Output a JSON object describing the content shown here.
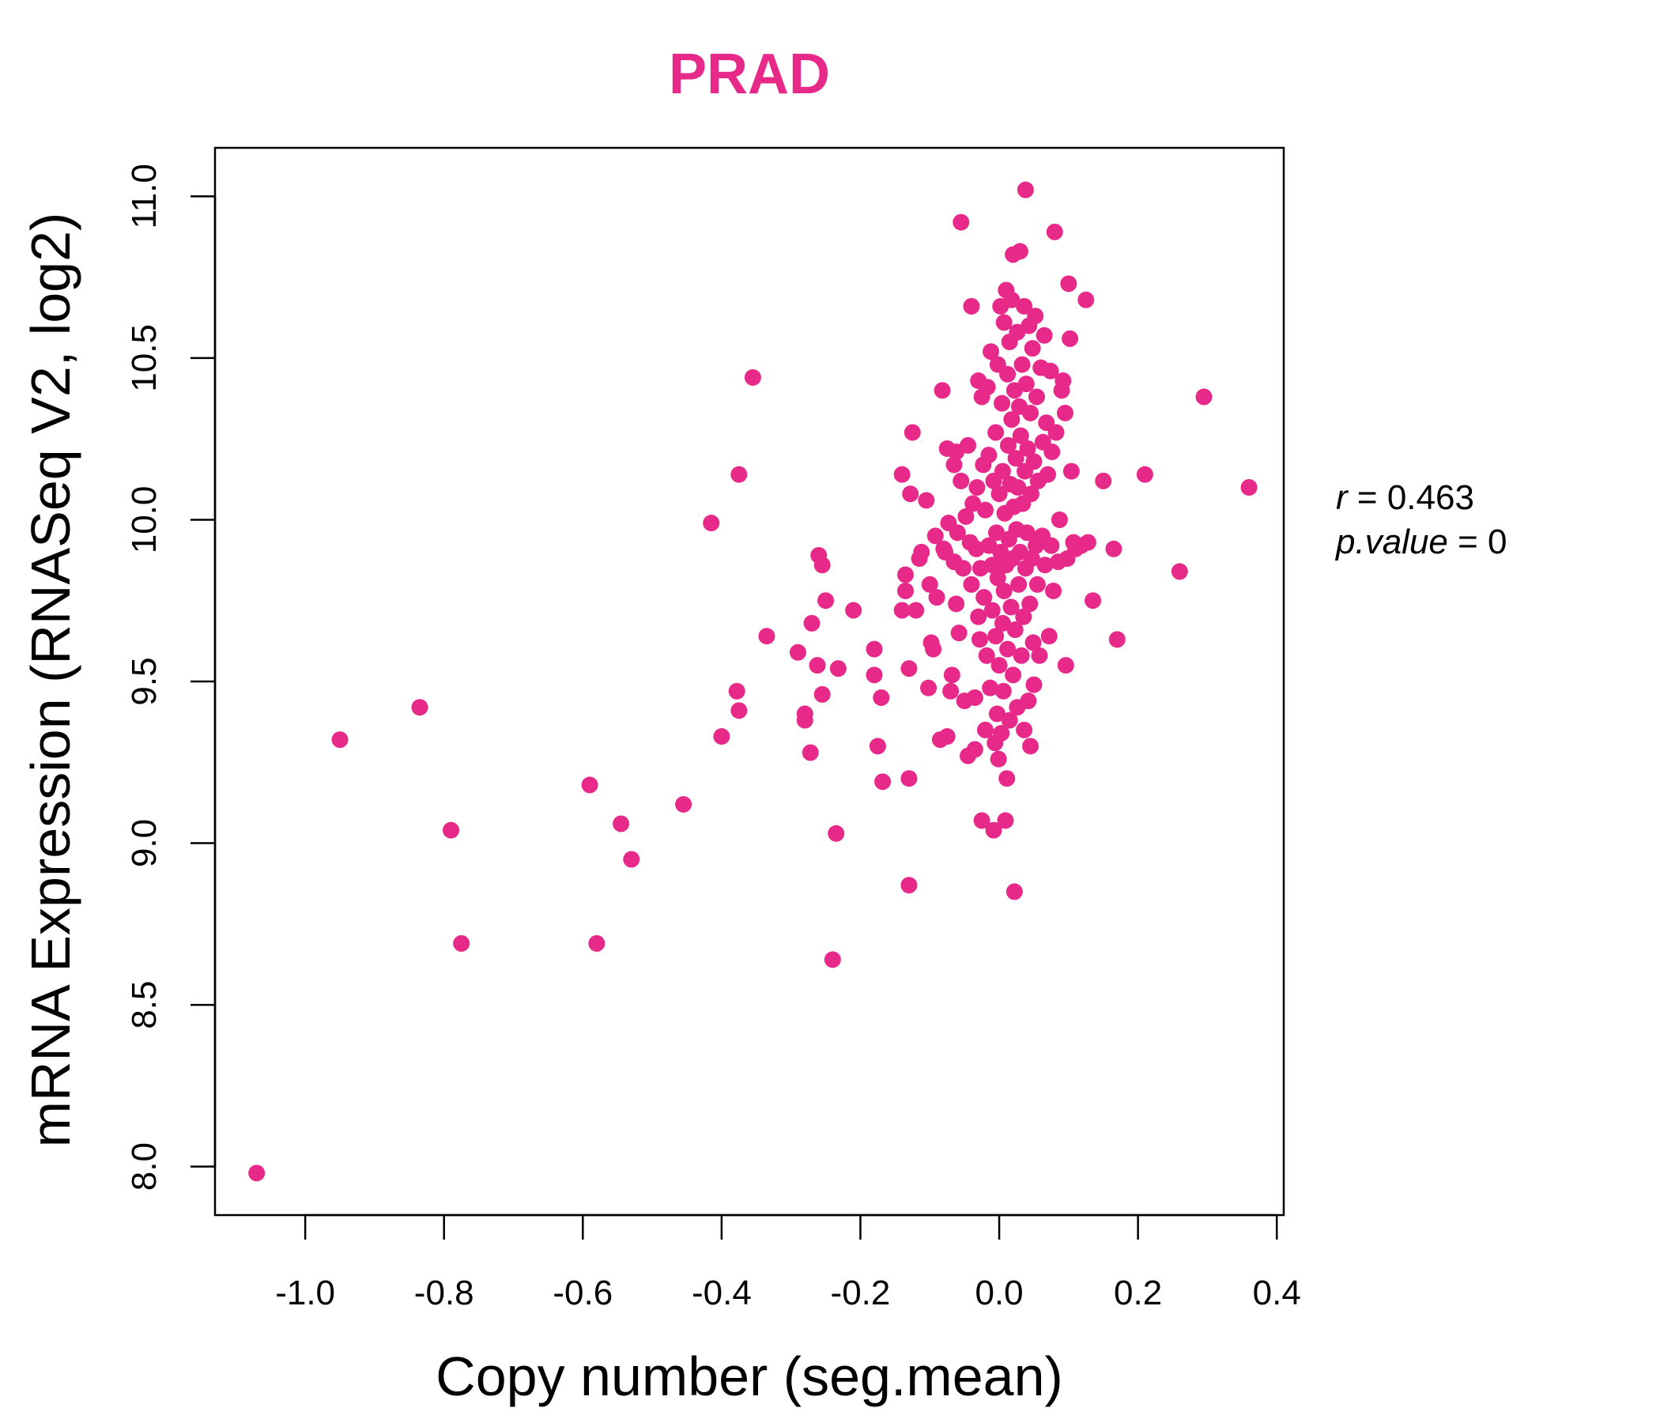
{
  "chart_data": {
    "type": "scatter",
    "title": "PRAD",
    "xlabel": "Copy number (seg.mean)",
    "ylabel": "mRNA Expression (RNASeq V2, log2)",
    "xlim": [
      -1.13,
      0.41
    ],
    "ylim": [
      7.85,
      11.15
    ],
    "xticks": [
      -1.0,
      -0.8,
      -0.6,
      -0.4,
      -0.2,
      0.0,
      0.2,
      0.4
    ],
    "xtick_labels": [
      "-1.0",
      "-0.8",
      "-0.6",
      "-0.4",
      "-0.2",
      "0.0",
      "0.2",
      "0.4"
    ],
    "yticks": [
      8.0,
      8.5,
      9.0,
      9.5,
      10.0,
      10.5,
      11.0
    ],
    "ytick_labels": [
      "8.0",
      "8.5",
      "9.0",
      "9.5",
      "10.0",
      "10.5",
      "11.0"
    ],
    "grid": false,
    "point_color": "#E7298A",
    "stats": {
      "r_label": "r",
      "r_value": "0.463",
      "p_label": "p.value",
      "p_value": "0"
    },
    "series": [
      {
        "name": "samples",
        "points": [
          [
            -1.07,
            7.98
          ],
          [
            -0.95,
            9.32
          ],
          [
            -0.835,
            9.42
          ],
          [
            -0.79,
            9.04
          ],
          [
            -0.775,
            8.69
          ],
          [
            -0.59,
            9.18
          ],
          [
            -0.58,
            8.69
          ],
          [
            -0.545,
            9.06
          ],
          [
            -0.53,
            8.95
          ],
          [
            -0.455,
            9.12
          ],
          [
            -0.415,
            9.99
          ],
          [
            -0.4,
            9.33
          ],
          [
            -0.375,
            10.14
          ],
          [
            -0.378,
            9.47
          ],
          [
            -0.375,
            9.41
          ],
          [
            -0.355,
            10.44
          ],
          [
            -0.335,
            9.64
          ],
          [
            -0.29,
            9.59
          ],
          [
            -0.28,
            9.4
          ],
          [
            -0.28,
            9.38
          ],
          [
            -0.272,
            9.28
          ],
          [
            -0.27,
            9.68
          ],
          [
            -0.26,
            9.89
          ],
          [
            -0.262,
            9.55
          ],
          [
            -0.255,
            9.86
          ],
          [
            -0.255,
            9.46
          ],
          [
            -0.25,
            9.75
          ],
          [
            -0.24,
            8.64
          ],
          [
            -0.235,
            9.03
          ],
          [
            -0.232,
            9.54
          ],
          [
            -0.21,
            9.72
          ],
          [
            -0.18,
            9.6
          ],
          [
            -0.18,
            9.52
          ],
          [
            -0.175,
            9.3
          ],
          [
            -0.17,
            9.45
          ],
          [
            -0.168,
            9.19
          ],
          [
            -0.14,
            9.72
          ],
          [
            -0.135,
            9.78
          ],
          [
            -0.135,
            9.83
          ],
          [
            -0.14,
            10.14
          ],
          [
            -0.13,
            9.2
          ],
          [
            -0.13,
            8.87
          ],
          [
            -0.13,
            9.54
          ],
          [
            -0.125,
            10.27
          ],
          [
            -0.128,
            10.08
          ],
          [
            -0.12,
            9.72
          ],
          [
            -0.115,
            9.88
          ],
          [
            -0.112,
            9.9
          ],
          [
            -0.105,
            10.06
          ],
          [
            -0.102,
            9.48
          ],
          [
            -0.1,
            9.8
          ],
          [
            -0.098,
            9.62
          ],
          [
            -0.095,
            9.6
          ],
          [
            -0.092,
            9.95
          ],
          [
            -0.09,
            9.76
          ],
          [
            -0.085,
            9.32
          ],
          [
            -0.082,
            10.4
          ],
          [
            -0.08,
            9.91
          ],
          [
            -0.078,
            9.9
          ],
          [
            -0.075,
            10.22
          ],
          [
            -0.075,
            9.33
          ],
          [
            -0.073,
            9.99
          ],
          [
            -0.07,
            9.47
          ],
          [
            -0.068,
            9.52
          ],
          [
            -0.065,
            10.17
          ],
          [
            -0.065,
            9.87
          ],
          [
            -0.062,
            9.74
          ],
          [
            -0.062,
            10.21
          ],
          [
            -0.06,
            9.96
          ],
          [
            -0.058,
            9.65
          ],
          [
            -0.055,
            10.92
          ],
          [
            -0.055,
            10.12
          ],
          [
            -0.052,
            9.85
          ],
          [
            -0.05,
            9.44
          ],
          [
            -0.048,
            10.01
          ],
          [
            -0.045,
            9.27
          ],
          [
            -0.045,
            10.23
          ],
          [
            -0.042,
            9.93
          ],
          [
            -0.04,
            10.66
          ],
          [
            -0.04,
            9.8
          ],
          [
            -0.038,
            10.05
          ],
          [
            -0.035,
            9.29
          ],
          [
            -0.035,
            9.45
          ],
          [
            -0.033,
            9.91
          ],
          [
            -0.032,
            10.1
          ],
          [
            -0.03,
            10.43
          ],
          [
            -0.03,
            9.7
          ],
          [
            -0.028,
            9.63
          ],
          [
            -0.027,
            9.85
          ],
          [
            -0.025,
            10.38
          ],
          [
            -0.025,
            9.07
          ],
          [
            -0.023,
            10.17
          ],
          [
            -0.022,
            9.76
          ],
          [
            -0.02,
            9.35
          ],
          [
            -0.02,
            10.03
          ],
          [
            -0.018,
            9.58
          ],
          [
            -0.017,
            10.41
          ],
          [
            -0.015,
            9.92
          ],
          [
            -0.015,
            10.2
          ],
          [
            -0.013,
            9.48
          ],
          [
            -0.012,
            10.52
          ],
          [
            -0.01,
            9.86
          ],
          [
            -0.01,
            9.72
          ],
          [
            -0.008,
            9.04
          ],
          [
            -0.008,
            10.12
          ],
          [
            -0.006,
            9.31
          ],
          [
            -0.005,
            10.27
          ],
          [
            -0.005,
            9.64
          ],
          [
            -0.004,
            9.96
          ],
          [
            -0.003,
            9.4
          ],
          [
            -0.002,
            10.48
          ],
          [
            -0.002,
            9.82
          ],
          [
            -0.001,
            9.26
          ],
          [
            0.0,
            10.08
          ],
          [
            0.0,
            9.55
          ],
          [
            0.002,
            10.66
          ],
          [
            0.002,
            9.9
          ],
          [
            0.003,
            9.34
          ],
          [
            0.004,
            10.36
          ],
          [
            0.005,
            9.68
          ],
          [
            0.005,
            10.15
          ],
          [
            0.006,
            9.47
          ],
          [
            0.007,
            10.61
          ],
          [
            0.007,
            9.78
          ],
          [
            0.008,
            10.02
          ],
          [
            0.009,
            9.07
          ],
          [
            0.01,
            10.71
          ],
          [
            0.01,
            9.86
          ],
          [
            0.011,
            9.2
          ],
          [
            0.012,
            10.45
          ],
          [
            0.012,
            9.6
          ],
          [
            0.013,
            10.23
          ],
          [
            0.014,
            9.94
          ],
          [
            0.015,
            10.55
          ],
          [
            0.015,
            9.38
          ],
          [
            0.016,
            10.11
          ],
          [
            0.017,
            9.73
          ],
          [
            0.018,
            10.68
          ],
          [
            0.018,
            10.31
          ],
          [
            0.019,
            9.88
          ],
          [
            0.02,
            10.82
          ],
          [
            0.02,
            9.52
          ],
          [
            0.021,
            10.04
          ],
          [
            0.022,
            8.85
          ],
          [
            0.022,
            10.4
          ],
          [
            0.023,
            9.66
          ],
          [
            0.024,
            10.19
          ],
          [
            0.025,
            9.97
          ],
          [
            0.026,
            10.58
          ],
          [
            0.026,
            9.42
          ],
          [
            0.027,
            10.1
          ],
          [
            0.028,
            9.8
          ],
          [
            0.029,
            10.35
          ],
          [
            0.03,
            10.83
          ],
          [
            0.03,
            9.9
          ],
          [
            0.031,
            10.26
          ],
          [
            0.032,
            9.58
          ],
          [
            0.033,
            10.48
          ],
          [
            0.034,
            10.05
          ],
          [
            0.035,
            9.7
          ],
          [
            0.036,
            10.66
          ],
          [
            0.036,
            9.35
          ],
          [
            0.037,
            10.15
          ],
          [
            0.038,
            11.02
          ],
          [
            0.038,
            9.85
          ],
          [
            0.039,
            10.42
          ],
          [
            0.04,
            9.96
          ],
          [
            0.041,
            10.22
          ],
          [
            0.042,
            9.44
          ],
          [
            0.043,
            10.6
          ],
          [
            0.044,
            9.74
          ],
          [
            0.045,
            10.33
          ],
          [
            0.045,
            9.3
          ],
          [
            0.046,
            10.08
          ],
          [
            0.047,
            9.88
          ],
          [
            0.048,
            10.53
          ],
          [
            0.049,
            9.62
          ],
          [
            0.05,
            10.18
          ],
          [
            0.05,
            9.49
          ],
          [
            0.052,
            10.63
          ],
          [
            0.053,
            9.92
          ],
          [
            0.054,
            10.38
          ],
          [
            0.055,
            9.8
          ],
          [
            0.056,
            10.12
          ],
          [
            0.058,
            9.58
          ],
          [
            0.06,
            10.47
          ],
          [
            0.062,
            9.95
          ],
          [
            0.063,
            10.24
          ],
          [
            0.065,
            10.57
          ],
          [
            0.066,
            9.86
          ],
          [
            0.068,
            10.3
          ],
          [
            0.07,
            10.14
          ],
          [
            0.072,
            9.64
          ],
          [
            0.074,
            10.46
          ],
          [
            0.075,
            9.92
          ],
          [
            0.076,
            10.21
          ],
          [
            0.078,
            9.78
          ],
          [
            0.08,
            10.89
          ],
          [
            0.082,
            10.27
          ],
          [
            0.085,
            9.87
          ],
          [
            0.087,
            10.0
          ],
          [
            0.09,
            10.4
          ],
          [
            0.092,
            10.43
          ],
          [
            0.095,
            10.33
          ],
          [
            0.096,
            9.55
          ],
          [
            0.098,
            9.88
          ],
          [
            0.1,
            10.73
          ],
          [
            0.102,
            10.56
          ],
          [
            0.104,
            10.15
          ],
          [
            0.107,
            9.93
          ],
          [
            0.11,
            9.91
          ],
          [
            0.118,
            9.92
          ],
          [
            0.125,
            10.68
          ],
          [
            0.128,
            9.93
          ],
          [
            0.135,
            9.75
          ],
          [
            0.15,
            10.12
          ],
          [
            0.165,
            9.91
          ],
          [
            0.17,
            9.63
          ],
          [
            0.21,
            10.14
          ],
          [
            0.26,
            9.84
          ],
          [
            0.295,
            10.38
          ],
          [
            0.36,
            10.1
          ]
        ]
      }
    ]
  }
}
